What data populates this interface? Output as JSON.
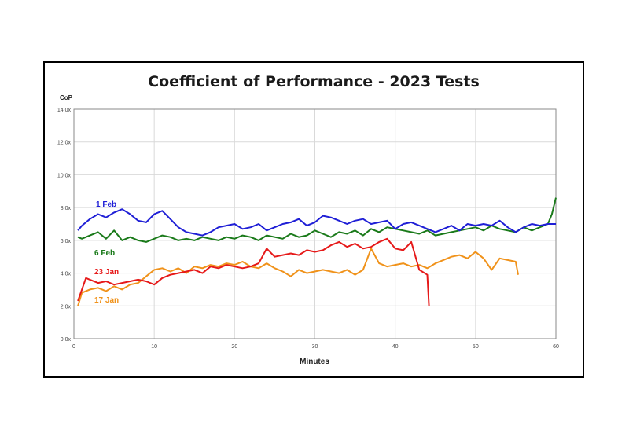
{
  "chart_data": {
    "type": "line",
    "title": "Coefficient of Performance - 2023 Tests",
    "xlabel": "Minutes",
    "ylabel": "CoP",
    "xlim": [
      0,
      60
    ],
    "ylim": [
      0,
      14
    ],
    "x_ticks": [
      0,
      10,
      20,
      30,
      40,
      50,
      60
    ],
    "x_tick_labels": [
      "0",
      "10",
      "20",
      "30",
      "40",
      "50",
      "60"
    ],
    "y_ticks": [
      0,
      2,
      4,
      6,
      8,
      10,
      12,
      14
    ],
    "y_tick_labels": [
      "0.0x",
      "2.0x",
      "4.0x",
      "6.0x",
      "8.0x",
      "10.0x",
      "12.0x",
      "14.0x"
    ],
    "grid": true,
    "legend": "inline labels at left",
    "series": [
      {
        "name": "1 Feb",
        "color": "#1f1fd6",
        "x": [
          0.5,
          1,
          2,
          3,
          4,
          5,
          6,
          7,
          8,
          9,
          10,
          11,
          12,
          13,
          14,
          15,
          16,
          17,
          18,
          19,
          20,
          21,
          22,
          23,
          24,
          25,
          26,
          27,
          28,
          29,
          30,
          31,
          32,
          33,
          34,
          35,
          36,
          37,
          38,
          39,
          40,
          41,
          42,
          43,
          44,
          45,
          46,
          47,
          48,
          49,
          50,
          51,
          52,
          53,
          54,
          55,
          56,
          57,
          58,
          59,
          60
        ],
        "values": [
          6.6,
          6.9,
          7.3,
          7.6,
          7.4,
          7.7,
          7.9,
          7.6,
          7.2,
          7.1,
          7.6,
          7.8,
          7.3,
          6.8,
          6.5,
          6.4,
          6.3,
          6.5,
          6.8,
          6.9,
          7.0,
          6.7,
          6.8,
          7.0,
          6.6,
          6.8,
          7.0,
          7.1,
          7.3,
          6.9,
          7.1,
          7.5,
          7.4,
          7.2,
          7.0,
          7.2,
          7.3,
          7.0,
          7.1,
          7.2,
          6.7,
          7.0,
          7.1,
          6.9,
          6.7,
          6.5,
          6.7,
          6.9,
          6.6,
          7.0,
          6.9,
          7.0,
          6.9,
          7.2,
          6.8,
          6.5,
          6.8,
          7.0,
          6.9,
          7.0,
          7.0
        ],
        "label": "1 Feb"
      },
      {
        "name": "6 Feb",
        "color": "#1a7a1a",
        "x": [
          0.5,
          1,
          2,
          3,
          4,
          5,
          6,
          7,
          8,
          9,
          10,
          11,
          12,
          13,
          14,
          15,
          16,
          17,
          18,
          19,
          20,
          21,
          22,
          23,
          24,
          25,
          26,
          27,
          28,
          29,
          30,
          31,
          32,
          33,
          34,
          35,
          36,
          37,
          38,
          39,
          40,
          41,
          42,
          43,
          44,
          45,
          46,
          47,
          48,
          49,
          50,
          51,
          52,
          53,
          54,
          55,
          56,
          57,
          58,
          59,
          59.5,
          60
        ],
        "values": [
          6.2,
          6.1,
          6.3,
          6.5,
          6.1,
          6.6,
          6.0,
          6.2,
          6.0,
          5.9,
          6.1,
          6.3,
          6.2,
          6.0,
          6.1,
          6.0,
          6.2,
          6.1,
          6.0,
          6.2,
          6.1,
          6.3,
          6.2,
          6.0,
          6.3,
          6.2,
          6.1,
          6.4,
          6.2,
          6.3,
          6.6,
          6.4,
          6.2,
          6.5,
          6.4,
          6.6,
          6.3,
          6.7,
          6.5,
          6.8,
          6.7,
          6.6,
          6.5,
          6.4,
          6.6,
          6.3,
          6.4,
          6.5,
          6.6,
          6.7,
          6.8,
          6.6,
          6.9,
          6.7,
          6.6,
          6.5,
          6.8,
          6.6,
          6.8,
          7.0,
          7.6,
          8.6
        ],
        "label": "6 Feb"
      },
      {
        "name": "23 Jan",
        "color": "#e61919",
        "x": [
          0.5,
          1,
          1.5,
          2,
          3,
          4,
          5,
          6,
          7,
          8,
          9,
          10,
          11,
          12,
          13,
          14,
          15,
          16,
          17,
          18,
          19,
          20,
          21,
          22,
          23,
          24,
          25,
          26,
          27,
          28,
          29,
          30,
          31,
          32,
          33,
          34,
          35,
          36,
          37,
          38,
          39,
          40,
          41,
          42,
          43,
          44,
          44.2
        ],
        "values": [
          2.3,
          3.0,
          3.7,
          3.6,
          3.4,
          3.5,
          3.3,
          3.4,
          3.5,
          3.6,
          3.5,
          3.3,
          3.7,
          3.9,
          4.0,
          4.1,
          4.2,
          4.0,
          4.4,
          4.3,
          4.5,
          4.4,
          4.3,
          4.4,
          4.6,
          5.5,
          5.0,
          5.1,
          5.2,
          5.1,
          5.4,
          5.3,
          5.4,
          5.7,
          5.9,
          5.6,
          5.8,
          5.5,
          5.6,
          5.9,
          6.1,
          5.5,
          5.4,
          5.9,
          4.2,
          3.9,
          2.0
        ],
        "label": "23 Jan"
      },
      {
        "name": "17 Jan",
        "color": "#f0921a",
        "x": [
          0.5,
          1,
          2,
          3,
          4,
          5,
          6,
          7,
          8,
          9,
          10,
          11,
          12,
          13,
          14,
          15,
          16,
          17,
          18,
          19,
          20,
          21,
          22,
          23,
          24,
          25,
          26,
          27,
          28,
          29,
          30,
          31,
          32,
          33,
          34,
          35,
          36,
          37,
          38,
          39,
          40,
          41,
          42,
          43,
          44,
          45,
          46,
          47,
          48,
          49,
          50,
          51,
          52,
          53,
          54,
          55,
          55.3
        ],
        "values": [
          2.0,
          2.8,
          3.0,
          3.1,
          2.9,
          3.2,
          3.0,
          3.3,
          3.4,
          3.8,
          4.2,
          4.3,
          4.1,
          4.3,
          4.0,
          4.4,
          4.3,
          4.5,
          4.4,
          4.6,
          4.5,
          4.7,
          4.4,
          4.3,
          4.6,
          4.3,
          4.1,
          3.8,
          4.2,
          4.0,
          4.1,
          4.2,
          4.1,
          4.0,
          4.2,
          3.9,
          4.2,
          5.5,
          4.6,
          4.4,
          4.5,
          4.6,
          4.4,
          4.5,
          4.3,
          4.6,
          4.8,
          5.0,
          5.1,
          4.9,
          5.3,
          4.9,
          4.2,
          4.9,
          4.8,
          4.7,
          3.9
        ],
        "label": "17 Jan"
      }
    ]
  }
}
